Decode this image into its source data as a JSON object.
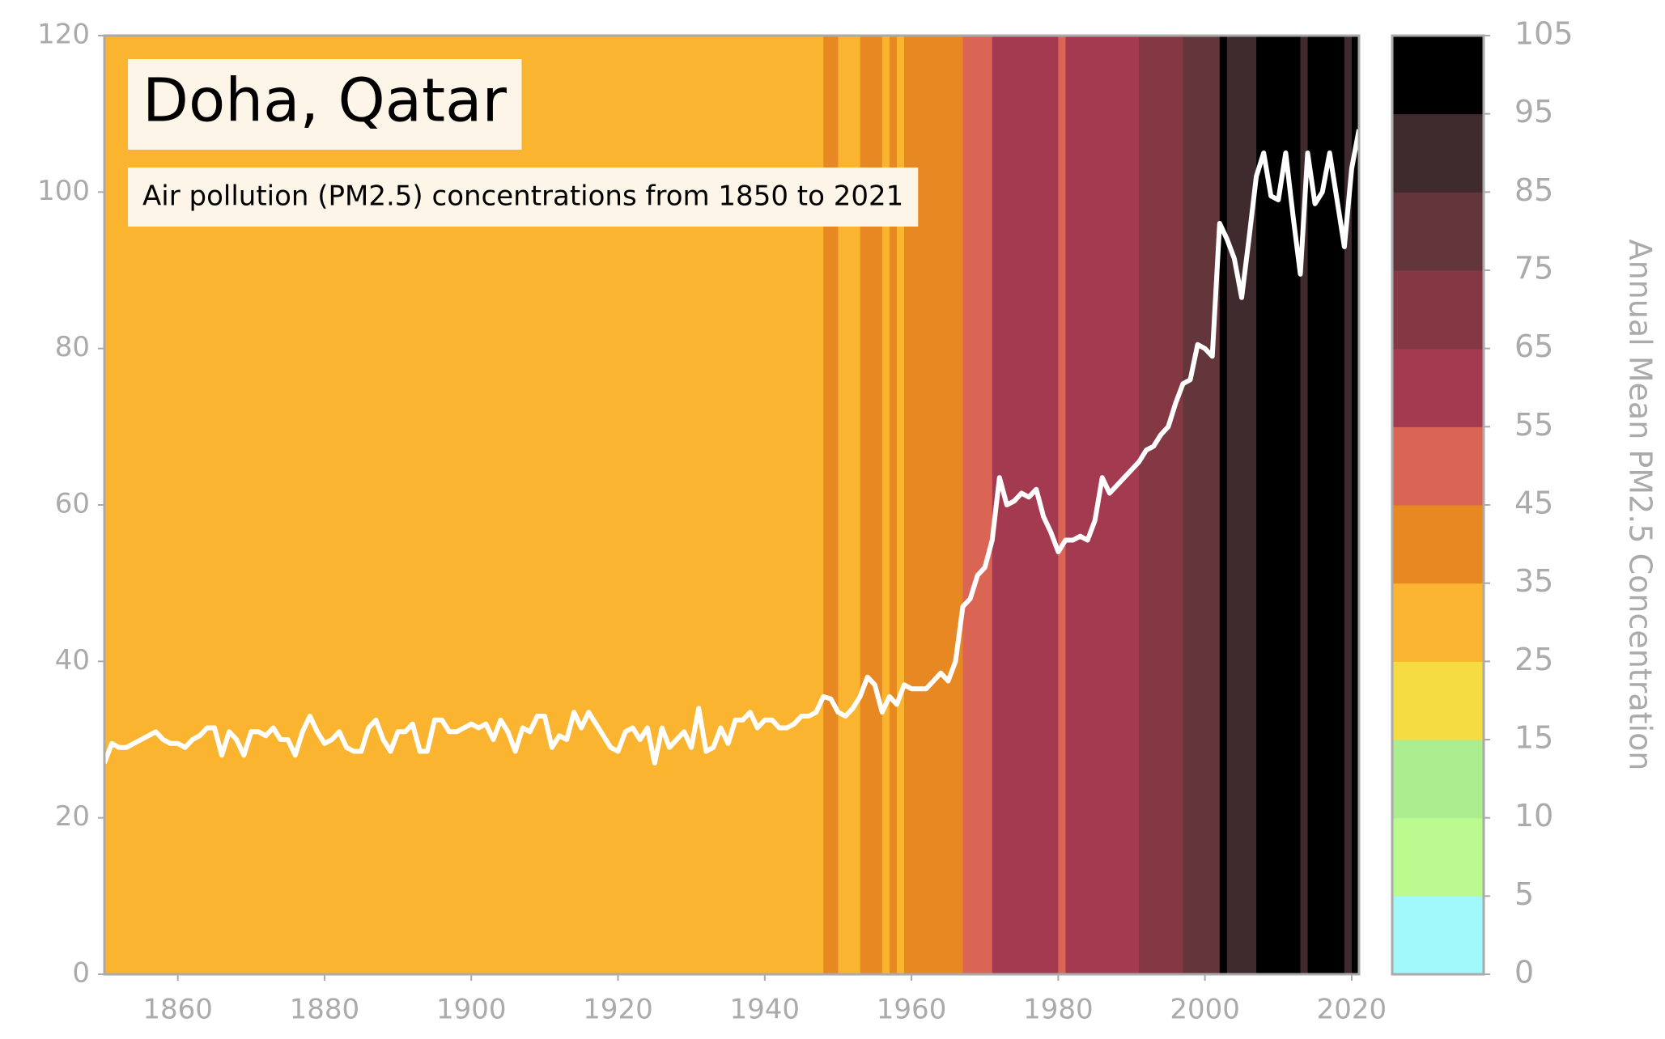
{
  "chart_data": {
    "type": "line",
    "title": "Doha, Qatar",
    "subtitle": "Air pollution (PM2.5) concentrations from 1850 to 2021",
    "x": [
      1850,
      1851,
      1852,
      1853,
      1854,
      1855,
      1856,
      1857,
      1858,
      1859,
      1860,
      1861,
      1862,
      1863,
      1864,
      1865,
      1866,
      1867,
      1868,
      1869,
      1870,
      1871,
      1872,
      1873,
      1874,
      1875,
      1876,
      1877,
      1878,
      1879,
      1880,
      1881,
      1882,
      1883,
      1884,
      1885,
      1886,
      1887,
      1888,
      1889,
      1890,
      1891,
      1892,
      1893,
      1894,
      1895,
      1896,
      1897,
      1898,
      1899,
      1900,
      1901,
      1902,
      1903,
      1904,
      1905,
      1906,
      1907,
      1908,
      1909,
      1910,
      1911,
      1912,
      1913,
      1914,
      1915,
      1916,
      1917,
      1918,
      1919,
      1920,
      1921,
      1922,
      1923,
      1924,
      1925,
      1926,
      1927,
      1928,
      1929,
      1930,
      1931,
      1932,
      1933,
      1934,
      1935,
      1936,
      1937,
      1938,
      1939,
      1940,
      1941,
      1942,
      1943,
      1944,
      1945,
      1946,
      1947,
      1948,
      1949,
      1950,
      1951,
      1952,
      1953,
      1954,
      1955,
      1956,
      1957,
      1958,
      1959,
      1960,
      1961,
      1962,
      1963,
      1964,
      1965,
      1966,
      1967,
      1968,
      1969,
      1970,
      1971,
      1972,
      1973,
      1974,
      1975,
      1976,
      1977,
      1978,
      1979,
      1980,
      1981,
      1982,
      1983,
      1984,
      1985,
      1986,
      1987,
      1988,
      1989,
      1990,
      1991,
      1992,
      1993,
      1994,
      1995,
      1996,
      1997,
      1998,
      1999,
      2000,
      2001,
      2002,
      2003,
      2004,
      2005,
      2006,
      2007,
      2008,
      2009,
      2010,
      2011,
      2012,
      2013,
      2014,
      2015,
      2016,
      2017,
      2018,
      2019,
      2020,
      2021
    ],
    "values": [
      27,
      29.5,
      29,
      29,
      29.5,
      30,
      30.5,
      31,
      30,
      29.5,
      29.5,
      29,
      30,
      30.5,
      31.5,
      31.5,
      28,
      31,
      30,
      28,
      31,
      31,
      30.5,
      31.5,
      30,
      30,
      28,
      31,
      33,
      31,
      29.5,
      30,
      31,
      29,
      28.5,
      28.5,
      31.5,
      32.5,
      30,
      28.5,
      31,
      31,
      32,
      28.5,
      28.5,
      32.5,
      32.5,
      31,
      31,
      31.5,
      32,
      31.5,
      32,
      30,
      32.5,
      31,
      28.5,
      31.5,
      31,
      33,
      33,
      29,
      30.5,
      30,
      33.5,
      31.5,
      33.5,
      32,
      30.5,
      29,
      28.5,
      31,
      31.5,
      30,
      31.5,
      27,
      31.5,
      29,
      30,
      31,
      29,
      34,
      28.5,
      29,
      31.5,
      29.5,
      32.5,
      32.5,
      33.5,
      31.5,
      32.5,
      32.5,
      31.5,
      31.5,
      32,
      33,
      33,
      33.5,
      35.5,
      35.2,
      33.5,
      33,
      34,
      35.5,
      38,
      37,
      33.5,
      35.5,
      34.5,
      37,
      36.5,
      36.5,
      36.5,
      37.5,
      38.5,
      37.5,
      40,
      47,
      48,
      51,
      52,
      55.5,
      63.5,
      60,
      60.5,
      61.5,
      61,
      62,
      58.5,
      56.5,
      54,
      55.5,
      55.5,
      56,
      55.5,
      58,
      63.5,
      61.5,
      62.5,
      63.5,
      64.5,
      65.5,
      67,
      67.5,
      69,
      70,
      73,
      75.5,
      76,
      80.5,
      80,
      79,
      96,
      94,
      91.5,
      86.5,
      94,
      102,
      105,
      99.5,
      99,
      105,
      97,
      89.5,
      105,
      98.5,
      100,
      105,
      99,
      93,
      103,
      108
    ],
    "line_color": "#ffffff",
    "xlim": [
      1850,
      2021
    ],
    "xticks": [
      1860,
      1880,
      1900,
      1920,
      1940,
      1960,
      1980,
      2000,
      2020
    ],
    "ylim": [
      0,
      120
    ],
    "yticks": [
      0,
      20,
      40,
      60,
      80,
      100,
      120
    ],
    "colorbar": {
      "label": "Annual Mean PM2.5 Concentration",
      "boundaries": [
        0,
        5,
        10,
        15,
        25,
        35,
        45,
        55,
        65,
        75,
        85,
        95,
        105
      ],
      "colors": [
        "#a0f8fb",
        "#bbfa8f",
        "#aced8f",
        "#f6dc43",
        "#fbb430",
        "#e78823",
        "#da6554",
        "#a33a4f",
        "#833844",
        "#63363b",
        "#3f2a2e",
        "#000000"
      ]
    }
  }
}
